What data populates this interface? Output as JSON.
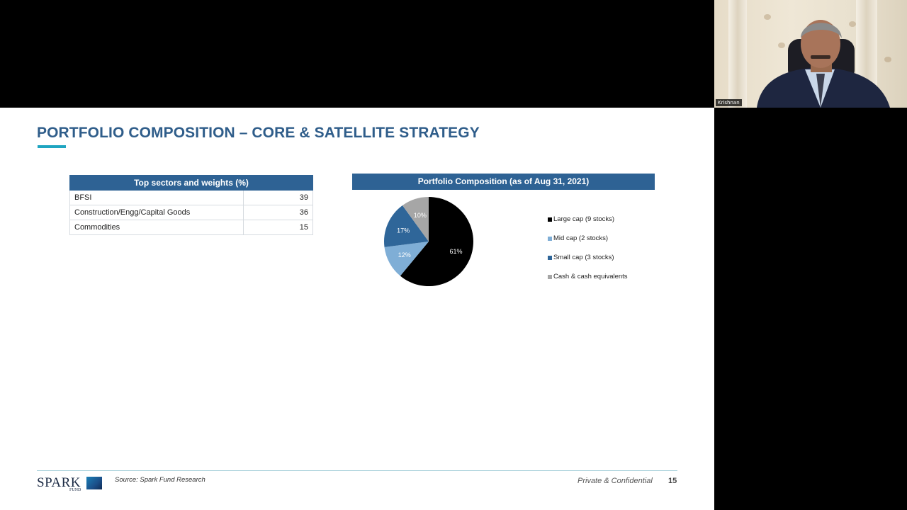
{
  "webcam": {
    "participant_name": "Krishnan"
  },
  "slide": {
    "title": "PORTFOLIO COMPOSITION – CORE & SATELLITE STRATEGY",
    "table": {
      "header": "Top sectors and weights (%)",
      "rows": [
        {
          "sector": "BFSI",
          "weight": "39"
        },
        {
          "sector": "Construction/Engg/Capital Goods",
          "weight": "36"
        },
        {
          "sector": "Commodities",
          "weight": "15"
        }
      ]
    },
    "pie_header": "Portfolio Composition (as of Aug 31, 2021)",
    "footer": {
      "logo_text": "SPARK",
      "logo_sub": "FUND",
      "source": "Source: Spark Fund Research",
      "confidential": "Private & Confidential",
      "page_number": "15"
    }
  },
  "colors": {
    "title_blue": "#2f5d8a",
    "header_blue": "#2e6294",
    "accent_teal": "#1fa5c1"
  },
  "chart_data": {
    "type": "pie",
    "title": "Portfolio Composition (as of Aug 31, 2021)",
    "legend_position": "right",
    "slices": [
      {
        "label": "Large cap (9 stocks)",
        "value": 61,
        "display": "61%",
        "color": "#000000",
        "text_color": "#ffffff"
      },
      {
        "label": "Mid cap (2 stocks)",
        "value": 12,
        "display": "12%",
        "color": "#7faed6",
        "text_color": "#ffffff"
      },
      {
        "label": "Small cap (3 stocks)",
        "value": 17,
        "display": "17%",
        "color": "#2f6699",
        "text_color": "#ffffff"
      },
      {
        "label": "Cash & cash equivalents",
        "value": 10,
        "display": "10%",
        "color": "#a6a6a6",
        "text_color": "#ffffff"
      }
    ]
  }
}
